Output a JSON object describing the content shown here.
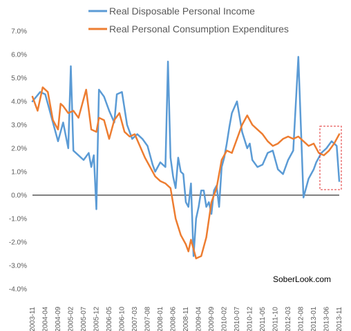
{
  "chart_data": {
    "type": "line",
    "ylim": [
      -4.0,
      7.0
    ],
    "yticks": [
      "7.0%",
      "6.0%",
      "5.0%",
      "4.0%",
      "3.0%",
      "2.0%",
      "1.0%",
      "0.0%",
      "-1.0%",
      "-2.0%",
      "-3.0%",
      "-4.0%"
    ],
    "ytick_values": [
      7,
      6,
      5,
      4,
      3,
      2,
      1,
      0,
      -1,
      -2,
      -3,
      -4
    ],
    "xtick_labels": [
      "2003-11",
      "2004-04",
      "2004-09",
      "2005-02",
      "2005-07",
      "2005-12",
      "2006-05",
      "2006-10",
      "2007-03",
      "2007-08",
      "2008-01",
      "2008-06",
      "2008-11",
      "2009-04",
      "2009-09",
      "2010-02",
      "2010-07",
      "2010-12",
      "2011-05",
      "2011-10",
      "2012-03",
      "2012-08",
      "2013-01",
      "2013-06",
      "2013-11"
    ],
    "legend_position": "top-center",
    "grid": false,
    "series": [
      {
        "name": "Real Disposable Personal Income",
        "color": "#5b9bd5",
        "x": [
          "2003-11",
          "2004-02",
          "2004-04",
          "2004-06",
          "2004-09",
          "2004-11",
          "2005-01",
          "2005-02",
          "2005-03",
          "2005-05",
          "2005-07",
          "2005-09",
          "2005-10",
          "2005-11",
          "2005-12",
          "2006-01",
          "2006-03",
          "2006-05",
          "2006-07",
          "2006-08",
          "2006-10",
          "2006-12",
          "2007-02",
          "2007-04",
          "2007-06",
          "2007-08",
          "2007-10",
          "2007-11",
          "2008-01",
          "2008-03",
          "2008-04",
          "2008-05",
          "2008-06",
          "2008-07",
          "2008-08",
          "2008-09",
          "2008-10",
          "2008-11",
          "2008-12",
          "2009-01",
          "2009-02",
          "2009-03",
          "2009-04",
          "2009-05",
          "2009-06",
          "2009-07",
          "2009-08",
          "2009-09",
          "2009-10",
          "2009-11",
          "2009-12",
          "2010-01",
          "2010-02",
          "2010-03",
          "2010-04",
          "2010-05",
          "2010-07",
          "2010-09",
          "2010-11",
          "2010-12",
          "2011-01",
          "2011-03",
          "2011-05",
          "2011-07",
          "2011-09",
          "2011-11",
          "2012-01",
          "2012-03",
          "2012-05",
          "2012-07",
          "2012-09",
          "2012-11",
          "2012-12",
          "2013-01",
          "2013-02",
          "2013-04",
          "2013-06",
          "2013-08",
          "2013-10",
          "2013-11"
        ],
        "values": [
          4.0,
          4.4,
          4.3,
          3.5,
          2.3,
          3.1,
          2.0,
          5.5,
          1.9,
          1.7,
          1.5,
          1.8,
          1.2,
          1.7,
          -0.6,
          4.5,
          4.2,
          3.6,
          3.1,
          4.3,
          4.4,
          3.0,
          2.4,
          2.6,
          2.4,
          2.1,
          1.3,
          1.0,
          1.4,
          1.2,
          5.7,
          1.6,
          0.8,
          0.3,
          1.6,
          1.0,
          0.9,
          -0.3,
          -0.5,
          0.5,
          -2.6,
          -1.0,
          -0.5,
          0.2,
          0.2,
          -0.5,
          -0.3,
          -0.8,
          0.2,
          0.4,
          -0.5,
          1.2,
          1.6,
          2.2,
          2.9,
          3.5,
          4.0,
          2.7,
          2.0,
          2.2,
          1.5,
          1.2,
          1.3,
          1.8,
          1.9,
          1.1,
          0.9,
          1.5,
          1.9,
          5.9,
          -0.1,
          0.7,
          0.9,
          1.1,
          1.4,
          1.8,
          2.0,
          2.3,
          2.1,
          0.6
        ]
      },
      {
        "name": "Real Personal Consumption Expenditures",
        "color": "#ed7d31",
        "x": [
          "2003-11",
          "2004-01",
          "2004-03",
          "2004-05",
          "2004-07",
          "2004-09",
          "2004-10",
          "2004-11",
          "2005-01",
          "2005-03",
          "2005-05",
          "2005-07",
          "2005-08",
          "2005-10",
          "2005-12",
          "2006-01",
          "2006-03",
          "2006-05",
          "2006-07",
          "2006-09",
          "2006-11",
          "2007-01",
          "2007-03",
          "2007-05",
          "2007-07",
          "2007-09",
          "2007-11",
          "2008-01",
          "2008-03",
          "2008-05",
          "2008-07",
          "2008-09",
          "2008-11",
          "2008-12",
          "2009-01",
          "2009-03",
          "2009-05",
          "2009-07",
          "2009-09",
          "2009-11",
          "2010-01",
          "2010-03",
          "2010-05",
          "2010-07",
          "2010-09",
          "2010-11",
          "2011-01",
          "2011-03",
          "2011-05",
          "2011-07",
          "2011-09",
          "2011-11",
          "2012-01",
          "2012-03",
          "2012-05",
          "2012-07",
          "2012-09",
          "2012-11",
          "2013-01",
          "2013-03",
          "2013-05",
          "2013-07",
          "2013-09",
          "2013-11"
        ],
        "values": [
          4.2,
          3.6,
          4.6,
          4.4,
          3.2,
          2.8,
          3.9,
          3.8,
          3.5,
          3.6,
          3.3,
          4.1,
          4.5,
          2.8,
          2.7,
          3.3,
          3.2,
          2.4,
          3.2,
          3.5,
          2.7,
          2.5,
          2.6,
          2.1,
          1.6,
          1.2,
          0.8,
          0.6,
          0.5,
          0.3,
          -1.0,
          -1.7,
          -2.1,
          -2.4,
          -1.9,
          -2.7,
          -2.6,
          -1.8,
          -0.3,
          0.3,
          1.5,
          1.9,
          1.8,
          2.4,
          3.0,
          3.4,
          3.0,
          2.8,
          2.6,
          2.3,
          2.1,
          2.2,
          2.4,
          2.5,
          2.4,
          2.5,
          2.3,
          2.1,
          2.2,
          1.8,
          1.7,
          1.9,
          2.2,
          2.6
        ]
      }
    ]
  },
  "watermark": "SoberLook.com"
}
